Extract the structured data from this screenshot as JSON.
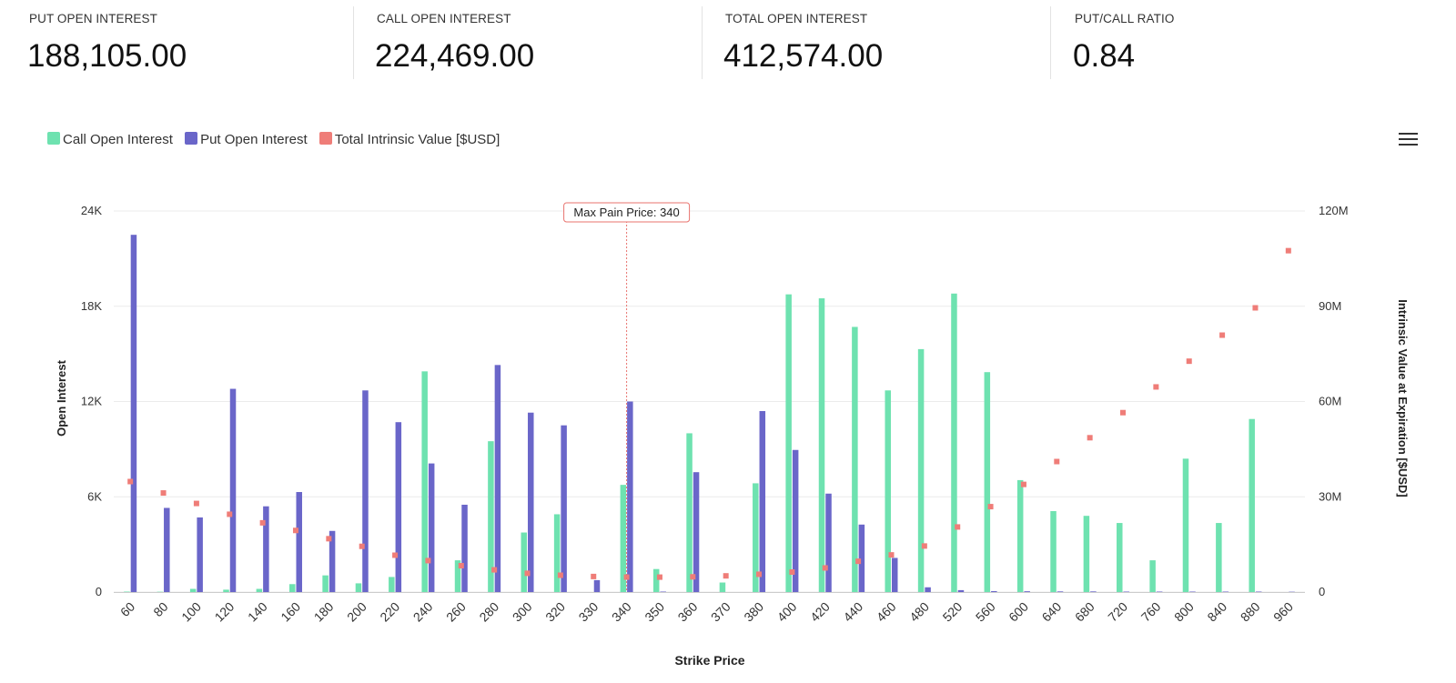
{
  "stats": [
    {
      "label": "PUT OPEN INTEREST",
      "value": "188,105.00"
    },
    {
      "label": "CALL OPEN INTEREST",
      "value": "224,469.00"
    },
    {
      "label": "TOTAL OPEN INTEREST",
      "value": "412,574.00"
    },
    {
      "label": "PUT/CALL RATIO",
      "value": "0.84"
    }
  ],
  "legend": [
    {
      "label": "Call Open Interest",
      "color": "#6ee2b0"
    },
    {
      "label": "Put Open Interest",
      "color": "#6a66c9"
    },
    {
      "label": "Total Intrinsic Value [$USD]",
      "color": "#ef7d78"
    }
  ],
  "menu_icon": "hamburger-menu-icon",
  "chart_data": {
    "type": "bar",
    "title": "",
    "xlabel": "Strike Price",
    "ylabel": "Open Interest",
    "y2label": "Intrinsic Value at Expiration [$USD]",
    "ylim": [
      0,
      24000
    ],
    "y2lim": [
      0,
      120000000
    ],
    "yticks": [
      "0",
      "6K",
      "12K",
      "18K",
      "24K"
    ],
    "y2ticks": [
      "0",
      "30M",
      "60M",
      "90M",
      "120M"
    ],
    "grid": true,
    "legend_position": "top-left",
    "categories": [
      "60",
      "80",
      "100",
      "120",
      "140",
      "160",
      "180",
      "200",
      "220",
      "240",
      "260",
      "280",
      "300",
      "320",
      "330",
      "340",
      "350",
      "360",
      "370",
      "380",
      "400",
      "420",
      "440",
      "460",
      "480",
      "520",
      "560",
      "600",
      "640",
      "680",
      "720",
      "760",
      "800",
      "840",
      "880",
      "960"
    ],
    "series": [
      {
        "name": "Call Open Interest",
        "kind": "bar",
        "axis": "left",
        "color": "#6ee2b0",
        "values": [
          30,
          20,
          200,
          150,
          200,
          500,
          1050,
          550,
          950,
          13900,
          2000,
          9500,
          3750,
          4900,
          0,
          6750,
          1450,
          10000,
          600,
          6850,
          18750,
          18500,
          16700,
          12700,
          15300,
          18800,
          13850,
          7050,
          5100,
          4800,
          4350,
          2000,
          8400,
          4350,
          10900,
          0
        ]
      },
      {
        "name": "Put Open Interest",
        "kind": "bar",
        "axis": "left",
        "color": "#6a66c9",
        "values": [
          22500,
          5300,
          4700,
          12800,
          5400,
          6300,
          3850,
          12700,
          10700,
          8100,
          5500,
          14300,
          11300,
          10500,
          750,
          12000,
          30,
          7550,
          0,
          11400,
          8950,
          6200,
          4250,
          2150,
          300,
          120,
          60,
          50,
          40,
          40,
          30,
          30,
          30,
          30,
          30,
          20
        ]
      },
      {
        "name": "Total Intrinsic Value [$USD]",
        "kind": "scatter",
        "axis": "right",
        "color": "#ef7d78",
        "values": [
          34800000,
          31200000,
          27900000,
          24500000,
          21800000,
          19400000,
          16800000,
          14400000,
          11600000,
          9900000,
          8300000,
          7000000,
          5900000,
          5300000,
          4900000,
          4700000,
          4700000,
          4800000,
          5100000,
          5600000,
          6300000,
          7600000,
          9700000,
          11700000,
          14500000,
          20500000,
          26900000,
          33900000,
          41100000,
          48600000,
          56500000,
          64600000,
          72700000,
          80900000,
          89500000,
          107500000
        ]
      }
    ],
    "annotations": [
      {
        "text": "Max Pain Price: 340",
        "x": "340"
      }
    ]
  }
}
